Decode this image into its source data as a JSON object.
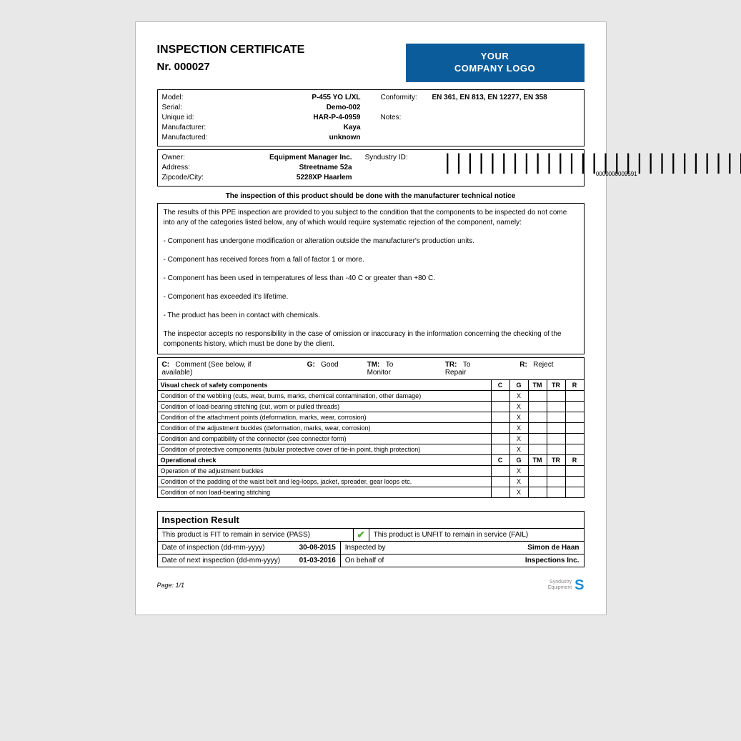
{
  "header": {
    "title": "INSPECTION CERTIFICATE",
    "number_label": "Nr. 000027",
    "logo_line1": "YOUR",
    "logo_line2": "COMPANY LOGO",
    "logo_bg": "#0a5c9b"
  },
  "product": {
    "model_label": "Model:",
    "model": "P-455 YO L/XL",
    "serial_label": "Serial:",
    "serial": "Demo-002",
    "uniqueid_label": "Unique id:",
    "uniqueid": "HAR-P-4-0959",
    "manufacturer_label": "Manufacturer:",
    "manufacturer": "Kaya",
    "manufactured_label": "Manufactured:",
    "manufactured": "unknown",
    "conformity_label": "Conformity:",
    "conformity": "EN 361,  EN 813,  EN 12277,  EN 358",
    "notes_label": "Notes:",
    "notes": ""
  },
  "owner": {
    "owner_label": "Owner:",
    "owner": "Equipment Manager Inc.",
    "address_label": "Address:",
    "address": "Streetname 52a",
    "zip_label": "Zipcode/City:",
    "zip": "5228XP Haarlem",
    "syndustry_label": "Syndustry ID:",
    "barcode_num": "0000000009591"
  },
  "notice": {
    "title": "The inspection of this product should be done with the manufacturer technical notice",
    "intro": "The results of this PPE inspection are provided to you subject to the condition that the components to be inspected do not come into any of the categories listed below, any of which would require systematic rejection of the component, namely:",
    "b1": "- Component has undergone modification or alteration outside the manufacturer's production units.",
    "b2": "- Component has received forces from a fall of factor 1 or more.",
    "b3": "- Component has been used in temperatures of less than -40 C or greater than +80 C.",
    "b4": "- Component has exceeded it's lifetime.",
    "b5": "- The product has been in contact with chemicals.",
    "outro": "The inspector accepts no responsibility in the case of omission or inaccuracy in the information concerning the checking of the components history, which must be done by the client."
  },
  "legend": {
    "c_k": "C:",
    "c_v": "Comment (See below, if available)",
    "g_k": "G:",
    "g_v": "Good",
    "tm_k": "TM:",
    "tm_v": "To Monitor",
    "tr_k": "TR:",
    "tr_v": "To Repair",
    "r_k": "R:",
    "r_v": "Reject"
  },
  "cols": {
    "c": "C",
    "g": "G",
    "tm": "TM",
    "tr": "TR",
    "r": "R"
  },
  "section1": {
    "title": "Visual check of safety components",
    "rows": [
      {
        "label": "Condition of the webbing (cuts, wear, burns, marks, chemical contamination, other damage)",
        "g": "X"
      },
      {
        "label": "Condition of load-bearing stitching (cut, worn or pulled threads)",
        "g": "X"
      },
      {
        "label": "Condition of the attachment points (deformation, marks, wear, corrosion)",
        "g": "X"
      },
      {
        "label": "Condition of the adjustment buckles (deformation, marks, wear, corrosion)",
        "g": "X"
      },
      {
        "label": "Condition and compatibility of the connector (see connector form)",
        "g": "X"
      },
      {
        "label": "Condition of protective components (tubular protective cover of tie-in point, thigh protection)",
        "g": "X"
      }
    ]
  },
  "section2": {
    "title": "Operational check",
    "rows": [
      {
        "label": "Operation of the adjustment buckles",
        "g": "X"
      },
      {
        "label": "Condition of the padding of the waist belt and leg-loops, jacket, spreader, gear loops etc.",
        "g": "X"
      },
      {
        "label": "Condition of non load-bearing stitching",
        "g": "X"
      }
    ]
  },
  "result": {
    "title": "Inspection Result",
    "pass_label": "This product is FIT to remain in service (PASS)",
    "fail_label": "This product is UNFIT to remain in service (FAIL)",
    "tick": "✔",
    "date_label": "Date of inspection (dd-mm-yyyy)",
    "date": "30-08-2015",
    "next_label": "Date of next inspection (dd-mm-yyyy)",
    "next": "01-03-2016",
    "inspected_label": "Inspected by",
    "inspected": "Simon de Haan",
    "behalf_label": "On behalf of",
    "behalf": "Inspections Inc."
  },
  "footer": {
    "page": "Page: 1/1",
    "brand1": "Syndustry",
    "brand2": "Equipment",
    "logo_letter": "S"
  }
}
